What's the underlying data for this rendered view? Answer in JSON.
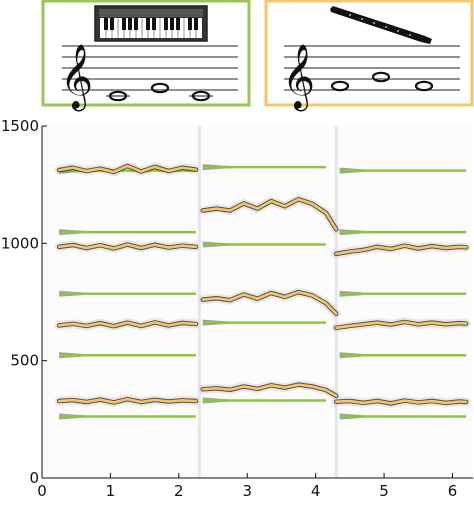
{
  "panels": [
    {
      "instrument": "piano-keyboard",
      "border_color": "#98c45a"
    },
    {
      "instrument": "clarinet",
      "border_color": "#f3c76a"
    }
  ],
  "colors": {
    "green": "#8cc63f",
    "orange": "#f6c567",
    "dark": "#1a1a1a",
    "grid": "#e6e6e6"
  },
  "chart_data": {
    "type": "line",
    "title": "",
    "xlabel": "",
    "ylabel": "",
    "xlim": [
      0,
      6.3
    ],
    "ylim": [
      0,
      1500
    ],
    "xticks": [
      0,
      1,
      2,
      3,
      4,
      5,
      6
    ],
    "yticks": [
      0,
      500,
      1000,
      1500
    ],
    "x_tick_labels": [
      "0",
      "1",
      "2",
      "3",
      "4",
      "5",
      "6"
    ],
    "y_tick_labels": [
      "0",
      "500",
      "1000",
      "1500"
    ],
    "segment_boundaries": [
      2.3,
      4.3
    ],
    "harmonic_lines": [
      {
        "x": [
          0.25,
          2.25
        ],
        "y": 1310
      },
      {
        "x": [
          0.25,
          2.25
        ],
        "y": 1048
      },
      {
        "x": [
          0.25,
          2.25
        ],
        "y": 785
      },
      {
        "x": [
          0.25,
          2.25
        ],
        "y": 523
      },
      {
        "x": [
          0.25,
          2.25
        ],
        "y": 262
      },
      {
        "x": [
          2.35,
          4.15
        ],
        "y": 1325
      },
      {
        "x": [
          2.35,
          4.15
        ],
        "y": 995
      },
      {
        "x": [
          2.35,
          4.15
        ],
        "y": 662
      },
      {
        "x": [
          2.35,
          4.15
        ],
        "y": 330
      },
      {
        "x": [
          4.35,
          6.2
        ],
        "y": 1310
      },
      {
        "x": [
          4.35,
          6.2
        ],
        "y": 1048
      },
      {
        "x": [
          4.35,
          6.2
        ],
        "y": 785
      },
      {
        "x": [
          4.35,
          6.2
        ],
        "y": 523
      },
      {
        "x": [
          4.35,
          6.2
        ],
        "y": 262
      }
    ],
    "series": [
      {
        "x": [
          0.25,
          0.45,
          0.65,
          0.85,
          1.05,
          1.25,
          1.45,
          1.65,
          1.85,
          2.05,
          2.25
        ],
        "y": [
          1312,
          1322,
          1308,
          1318,
          1304,
          1330,
          1306,
          1326,
          1308,
          1322,
          1314
        ]
      },
      {
        "x": [
          0.25,
          0.45,
          0.65,
          0.85,
          1.05,
          1.25,
          1.45,
          1.65,
          1.85,
          2.05,
          2.25
        ],
        "y": [
          985,
          993,
          980,
          992,
          978,
          995,
          980,
          994,
          982,
          990,
          985
        ]
      },
      {
        "x": [
          0.25,
          0.45,
          0.65,
          0.85,
          1.05,
          1.25,
          1.45,
          1.65,
          1.85,
          2.05,
          2.25
        ],
        "y": [
          650,
          657,
          648,
          660,
          647,
          662,
          648,
          663,
          650,
          661,
          656
        ]
      },
      {
        "x": [
          0.25,
          0.45,
          0.65,
          0.85,
          1.05,
          1.25,
          1.45,
          1.65,
          1.85,
          2.05,
          2.25
        ],
        "y": [
          328,
          332,
          324,
          334,
          322,
          336,
          324,
          333,
          326,
          331,
          328
        ]
      },
      {
        "x": [
          2.35,
          2.55,
          2.75,
          2.95,
          3.15,
          3.35,
          3.55,
          3.75,
          3.95,
          4.15,
          4.3
        ],
        "y": [
          1140,
          1148,
          1140,
          1170,
          1148,
          1180,
          1158,
          1188,
          1168,
          1130,
          1060
        ]
      },
      {
        "x": [
          2.35,
          2.55,
          2.75,
          2.95,
          3.15,
          3.35,
          3.55,
          3.75,
          3.95,
          4.15,
          4.3
        ],
        "y": [
          760,
          766,
          758,
          782,
          764,
          788,
          772,
          792,
          778,
          745,
          700
        ]
      },
      {
        "x": [
          2.35,
          2.55,
          2.75,
          2.95,
          3.15,
          3.35,
          3.55,
          3.75,
          3.95,
          4.15,
          4.3
        ],
        "y": [
          378,
          382,
          376,
          390,
          380,
          395,
          385,
          398,
          390,
          375,
          350
        ]
      },
      {
        "x": [
          4.3,
          4.5,
          4.7,
          4.9,
          5.1,
          5.3,
          5.5,
          5.7,
          5.9,
          6.1,
          6.2
        ],
        "y": [
          955,
          965,
          972,
          985,
          976,
          990,
          978,
          988,
          980,
          985,
          983
        ]
      },
      {
        "x": [
          4.3,
          4.5,
          4.7,
          4.9,
          5.1,
          5.3,
          5.5,
          5.7,
          5.9,
          6.1,
          6.2
        ],
        "y": [
          640,
          648,
          655,
          662,
          654,
          665,
          655,
          662,
          655,
          660,
          658
        ]
      },
      {
        "x": [
          4.3,
          4.5,
          4.7,
          4.9,
          5.1,
          5.3,
          5.5,
          5.7,
          5.9,
          6.1,
          6.2
        ],
        "y": [
          325,
          328,
          320,
          328,
          318,
          330,
          322,
          328,
          320,
          326,
          324
        ]
      }
    ]
  }
}
